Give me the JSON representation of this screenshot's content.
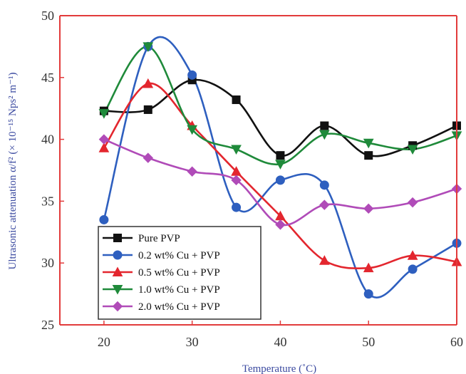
{
  "chart_data": {
    "type": "line",
    "xlabel": "Temperature (˚C)",
    "ylabel": "Ultrasonic attenuation α/f² (× 10⁻¹⁵ Nps² m⁻¹)",
    "xlim": [
      15,
      60
    ],
    "ylim": [
      25,
      50
    ],
    "xticks": [
      "20",
      "30",
      "40",
      "50",
      "60"
    ],
    "xtick_values": [
      20,
      30,
      40,
      50,
      60
    ],
    "yticks": [
      "25",
      "30",
      "35",
      "40",
      "45",
      "50"
    ],
    "ytick_values": [
      25,
      30,
      35,
      40,
      45,
      50
    ],
    "grid": false,
    "legend_position": "bottom-left",
    "x": [
      20,
      25,
      30,
      35,
      40,
      45,
      50,
      55,
      60
    ],
    "series": [
      {
        "name": "Pure PVP",
        "color": "#111111",
        "marker": "square",
        "values": [
          42.3,
          42.4,
          44.8,
          43.2,
          38.7,
          41.1,
          38.7,
          39.5,
          41.1
        ]
      },
      {
        "name": "0.2 wt% Cu + PVP",
        "color": "#2e5fbf",
        "marker": "circle",
        "values": [
          33.5,
          47.5,
          45.2,
          34.5,
          36.7,
          36.3,
          27.5,
          29.5,
          31.6
        ]
      },
      {
        "name": "0.5 wt% Cu + PVP",
        "color": "#e3262e",
        "marker": "triangle-up",
        "values": [
          39.3,
          44.5,
          41.1,
          37.4,
          33.8,
          30.2,
          29.6,
          30.6,
          30.1
        ]
      },
      {
        "name": "1.0 wt% Cu + PVP",
        "color": "#1f8a3a",
        "marker": "triangle-down",
        "values": [
          42.1,
          47.5,
          40.8,
          39.2,
          38.0,
          40.4,
          39.7,
          39.2,
          40.3
        ]
      },
      {
        "name": "2.0 wt% Cu + PVP",
        "color": "#b04bb8",
        "marker": "diamond",
        "values": [
          40.0,
          38.5,
          37.4,
          36.7,
          33.1,
          34.7,
          34.4,
          34.9,
          36.0
        ]
      }
    ],
    "axis_color": "#e23b3b"
  }
}
